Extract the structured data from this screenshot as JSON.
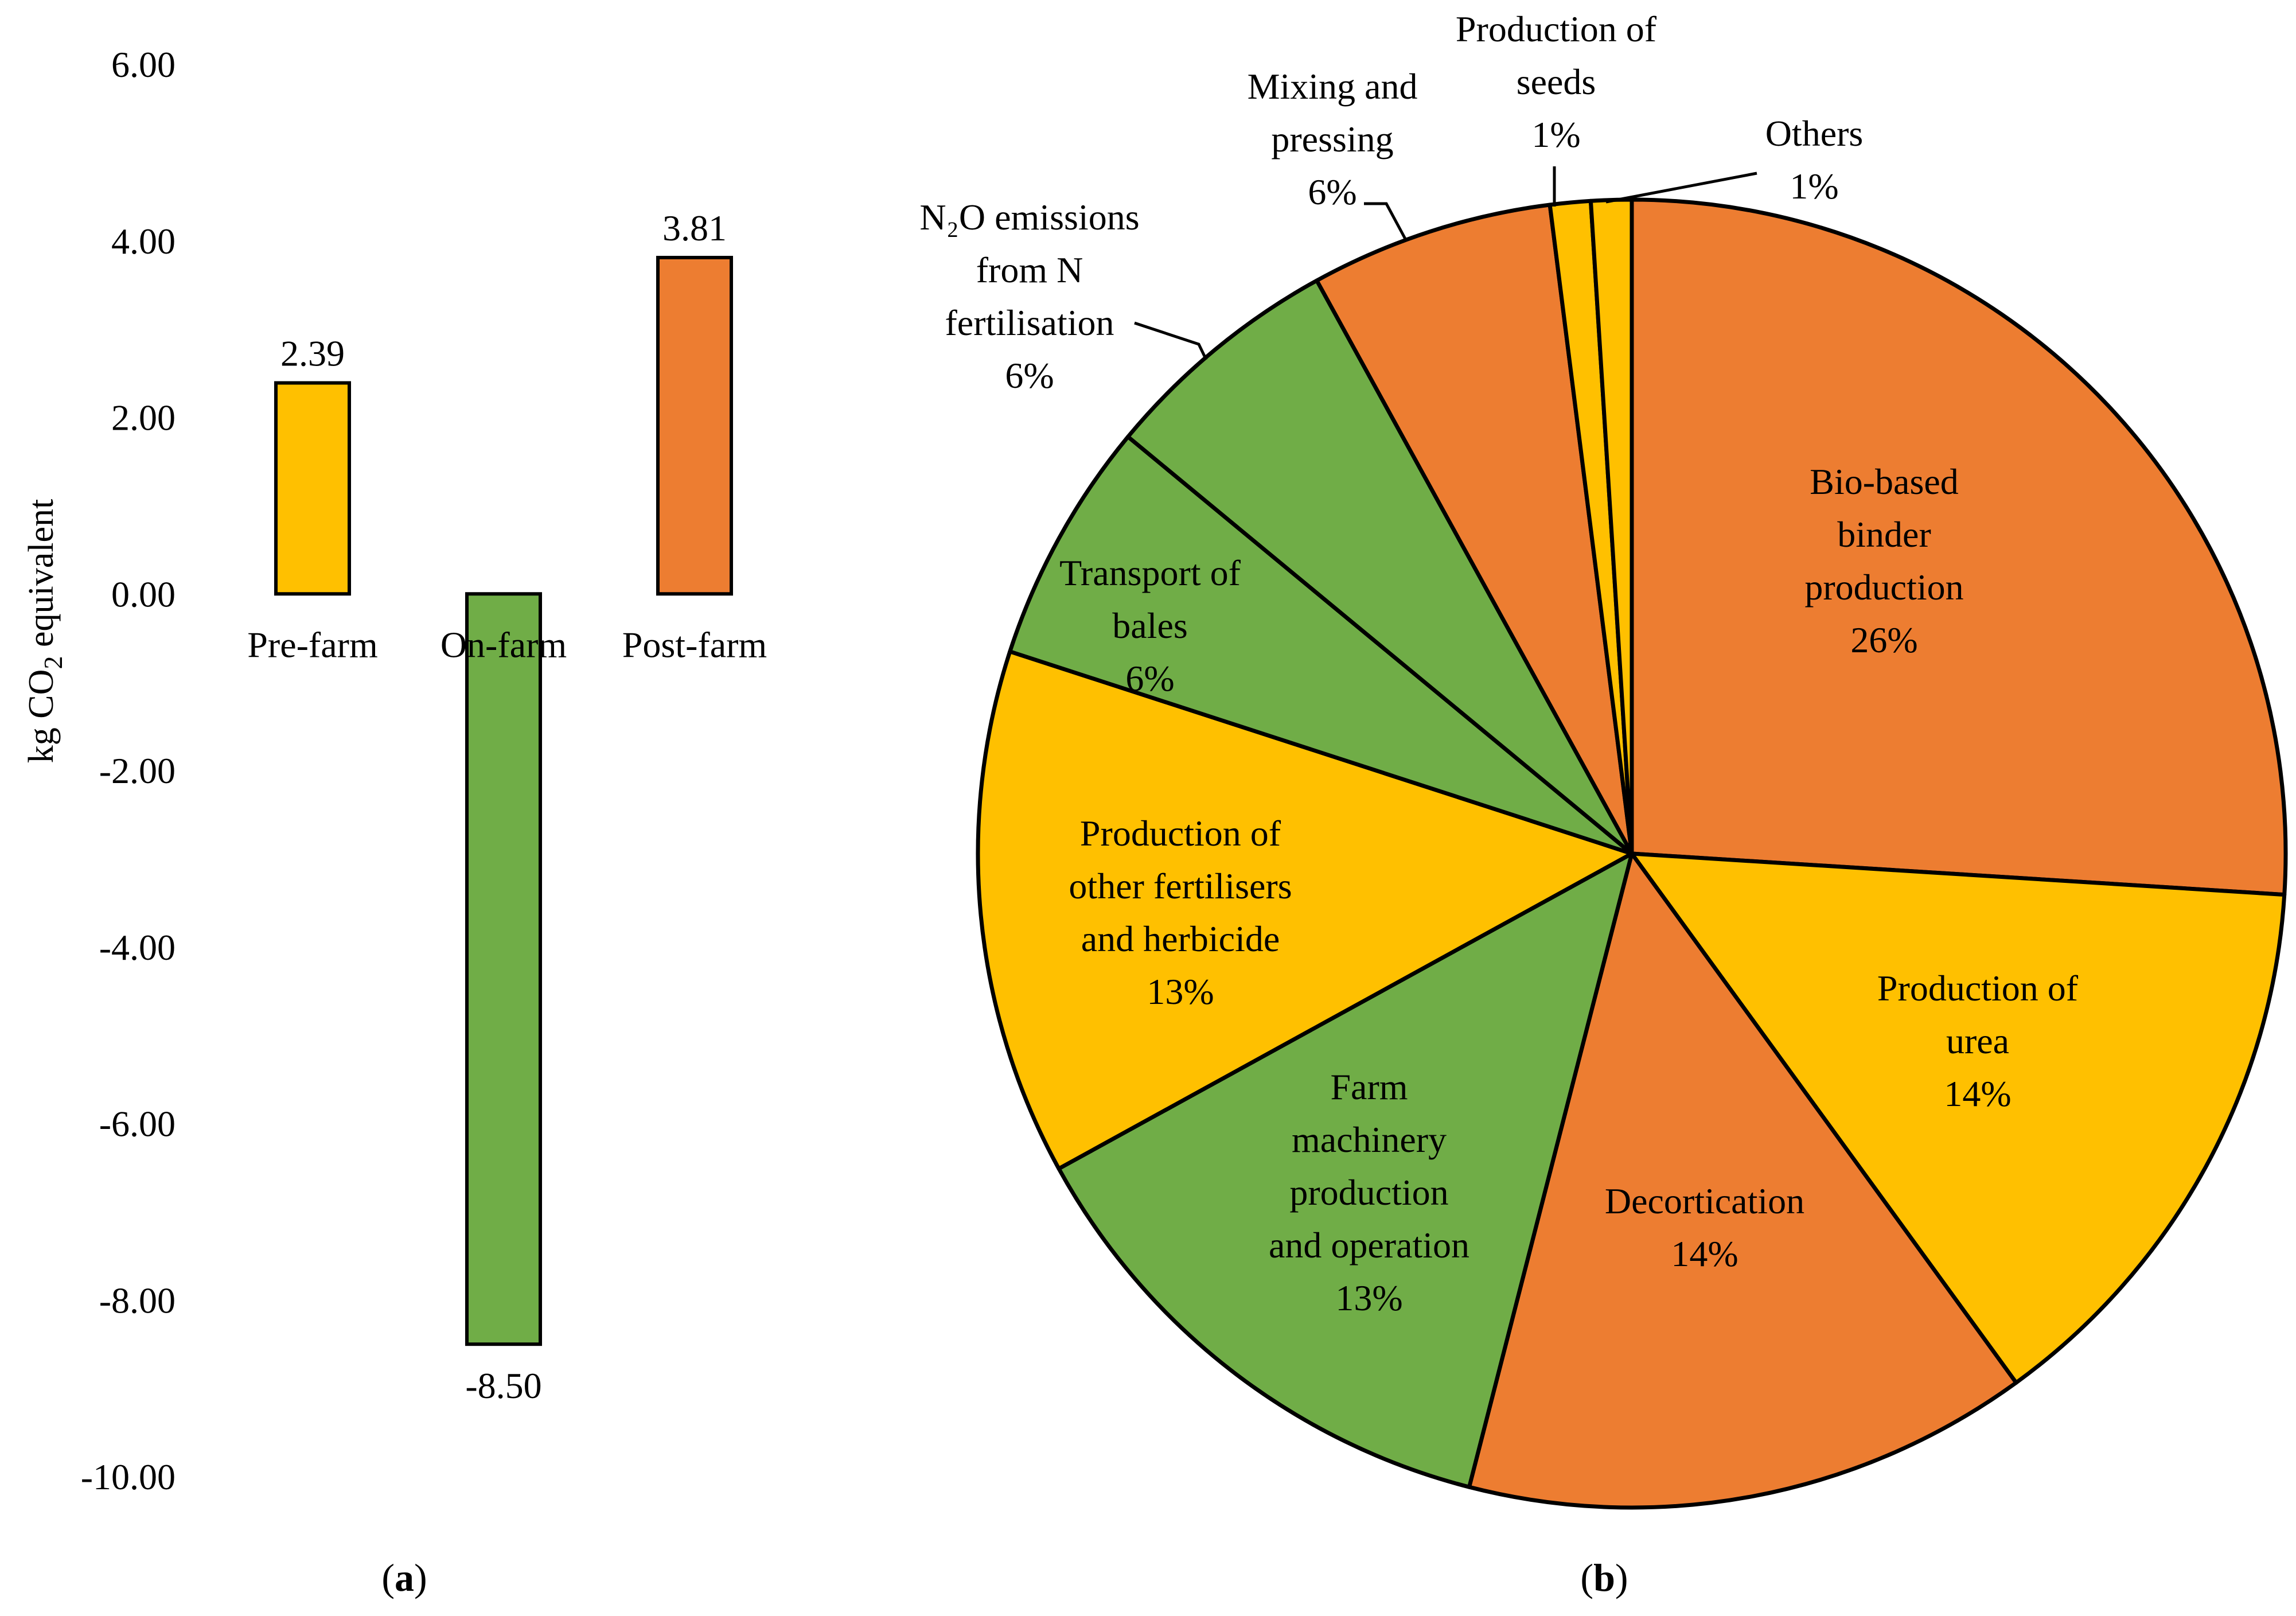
{
  "chart_data": [
    {
      "panel": "a",
      "type": "bar",
      "panel_label": {
        "open": "(",
        "letter": "a",
        "close": ")"
      },
      "ylabel": {
        "prefix": "kg CO",
        "sub": "2",
        "suffix": " equivalent"
      },
      "ylim": [
        -10,
        6
      ],
      "yticks": [
        "6.00",
        "4.00",
        "2.00",
        "0.00",
        "-2.00",
        "-4.00",
        "-6.00",
        "-8.00",
        "-10.00"
      ],
      "categories": [
        "Pre-farm",
        "On-farm",
        "Post-farm"
      ],
      "values": [
        2.39,
        -8.5,
        3.81
      ],
      "value_labels": [
        "2.39",
        "-8.50",
        "3.81"
      ],
      "colors": [
        "#FFC000",
        "#70AD47",
        "#ED7D31"
      ]
    },
    {
      "panel": "b",
      "type": "pie",
      "panel_label": {
        "open": "(",
        "letter": "b",
        "close": ")"
      },
      "slices": [
        {
          "lines": [
            "Bio-based",
            "binder",
            "production",
            "26%"
          ],
          "value": 26,
          "color": "#ED7D31"
        },
        {
          "lines": [
            "Production of",
            "urea",
            "14%"
          ],
          "value": 14,
          "color": "#FFC000"
        },
        {
          "lines": [
            "Decortication",
            "14%"
          ],
          "value": 14,
          "color": "#ED7D31"
        },
        {
          "lines": [
            "Farm",
            "machinery",
            "production",
            "and operation",
            "13%"
          ],
          "value": 13,
          "color": "#70AD47"
        },
        {
          "lines": [
            "Production of",
            "other fertilisers",
            "and herbicide",
            "13%"
          ],
          "value": 13,
          "color": "#FFC000"
        },
        {
          "lines": [
            "Transport of",
            "bales",
            "6%"
          ],
          "value": 6,
          "color": "#70AD47"
        },
        {
          "lines": [
            "N₂O emissions",
            "from N",
            "fertilisation",
            "6%"
          ],
          "value": 6,
          "color": "#70AD47"
        },
        {
          "lines": [
            "Mixing and",
            "pressing",
            "6%"
          ],
          "value": 6,
          "color": "#ED7D31"
        },
        {
          "lines": [
            "Production of",
            "seeds",
            "1%"
          ],
          "value": 1,
          "color": "#FFC000"
        },
        {
          "lines": [
            "Others",
            "1%"
          ],
          "value": 1,
          "color": "#FFC000"
        }
      ]
    }
  ]
}
